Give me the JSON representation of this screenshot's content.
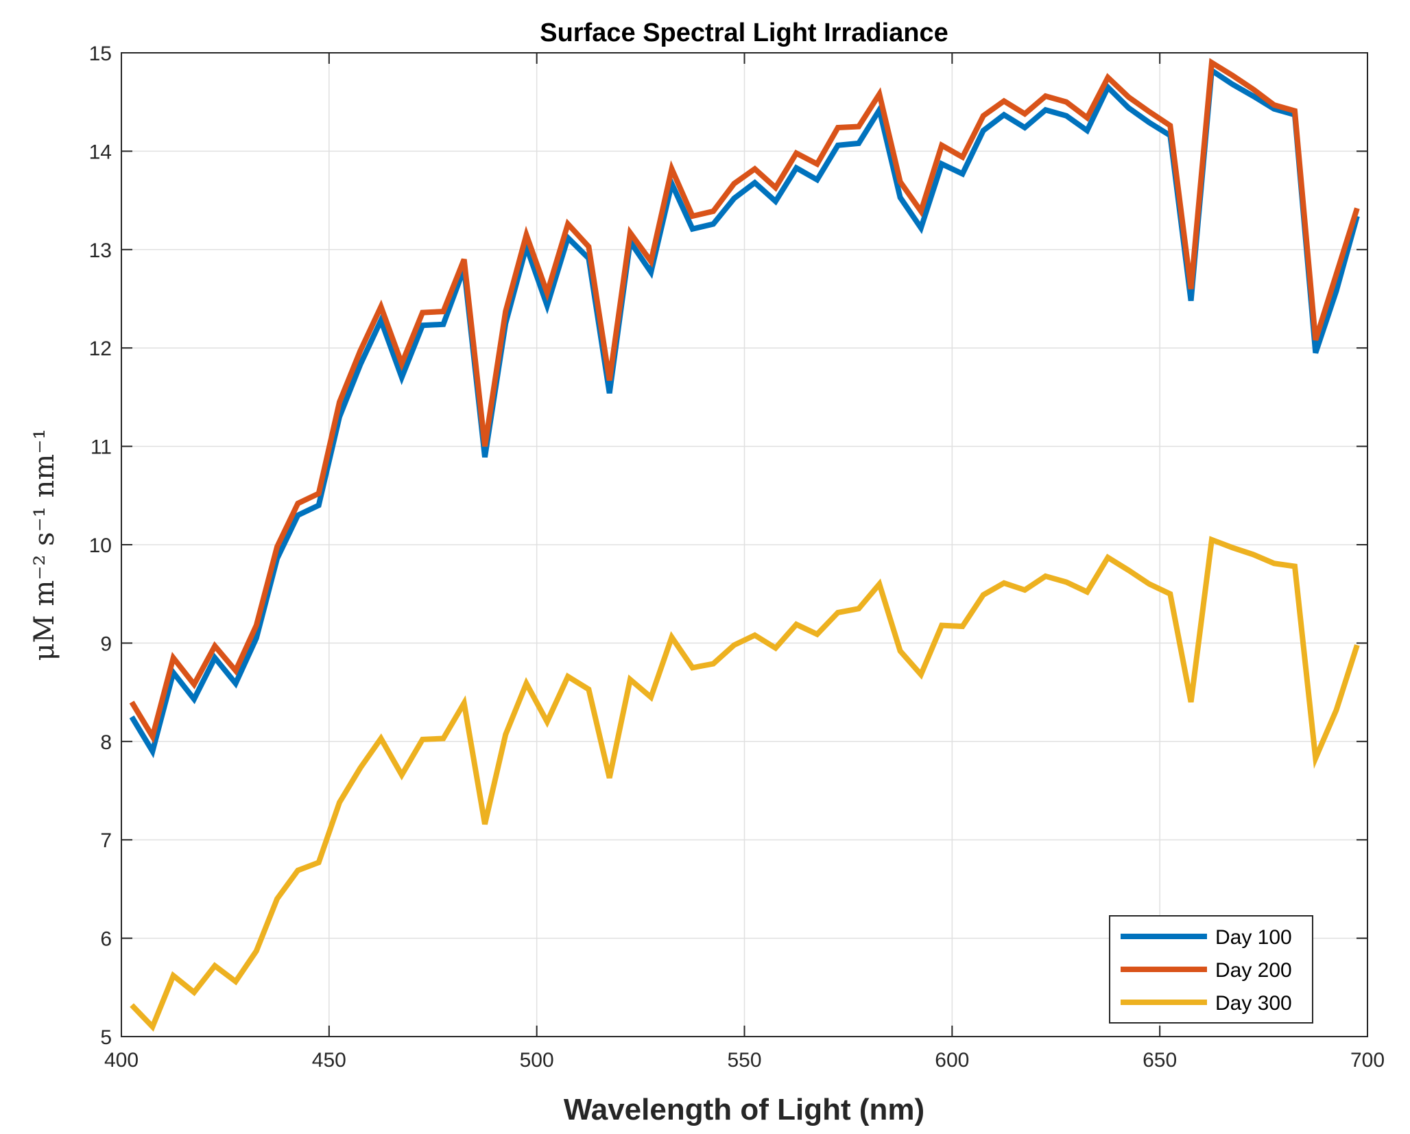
{
  "chart_data": {
    "type": "line",
    "title": "Surface Spectral Light Irradiance",
    "xlabel": "Wavelength of Light (nm)",
    "ylabel": "μM m⁻² s⁻¹ nm⁻¹",
    "xlim": [
      400,
      700
    ],
    "ylim": [
      5,
      15
    ],
    "xticks": [
      400,
      450,
      500,
      550,
      600,
      650,
      700
    ],
    "yticks": [
      5,
      6,
      7,
      8,
      9,
      10,
      11,
      12,
      13,
      14,
      15
    ],
    "grid": true,
    "legend_position": "bottom-right",
    "x": [
      402.5,
      407.5,
      412.5,
      417.5,
      422.5,
      427.5,
      432.5,
      437.5,
      442.5,
      447.5,
      452.5,
      457.5,
      462.5,
      467.5,
      472.5,
      477.5,
      482.5,
      487.5,
      492.5,
      497.5,
      502.5,
      507.5,
      512.5,
      517.5,
      522.5,
      527.5,
      532.5,
      537.5,
      542.5,
      547.5,
      552.5,
      557.5,
      562.5,
      567.5,
      572.5,
      577.5,
      582.5,
      587.5,
      592.5,
      597.5,
      602.5,
      607.5,
      612.5,
      617.5,
      622.5,
      627.5,
      632.5,
      637.5,
      642.5,
      647.5,
      652.5,
      657.5,
      662.5,
      667.5,
      672.5,
      677.5,
      682.5,
      687.5,
      692.5,
      697.5
    ],
    "series": [
      {
        "name": "Day 100",
        "color": "#0072BD",
        "values": [
          8.25,
          7.9,
          8.7,
          8.43,
          8.85,
          8.59,
          9.05,
          9.86,
          10.3,
          10.4,
          11.3,
          11.83,
          12.28,
          11.7,
          12.23,
          12.24,
          12.81,
          10.89,
          12.25,
          13.03,
          12.43,
          13.12,
          12.91,
          11.54,
          13.08,
          12.77,
          13.67,
          13.21,
          13.26,
          13.52,
          13.68,
          13.49,
          13.83,
          13.71,
          14.06,
          14.08,
          14.42,
          13.53,
          13.22,
          13.87,
          13.77,
          14.21,
          14.37,
          14.24,
          14.42,
          14.36,
          14.21,
          14.65,
          14.44,
          14.29,
          14.16,
          12.48,
          14.82,
          14.68,
          14.56,
          14.43,
          14.37,
          11.95,
          12.58,
          13.34
        ]
      },
      {
        "name": "Day 200",
        "color": "#D95319",
        "values": [
          8.4,
          8.05,
          8.85,
          8.58,
          8.97,
          8.72,
          9.18,
          9.98,
          10.42,
          10.52,
          11.45,
          11.97,
          12.42,
          11.84,
          12.36,
          12.37,
          12.9,
          11.0,
          12.37,
          13.15,
          12.56,
          13.26,
          13.03,
          11.67,
          13.17,
          12.88,
          13.82,
          13.34,
          13.39,
          13.67,
          13.82,
          13.63,
          13.98,
          13.87,
          14.24,
          14.25,
          14.58,
          13.69,
          13.39,
          14.06,
          13.94,
          14.36,
          14.51,
          14.38,
          14.56,
          14.5,
          14.34,
          14.75,
          14.55,
          14.4,
          14.26,
          12.6,
          14.9,
          14.77,
          14.63,
          14.47,
          14.41,
          12.08,
          12.75,
          13.42
        ]
      },
      {
        "name": "Day 300",
        "color": "#EDB120",
        "values": [
          5.32,
          5.1,
          5.62,
          5.45,
          5.72,
          5.56,
          5.87,
          6.4,
          6.69,
          6.77,
          7.38,
          7.73,
          8.03,
          7.66,
          8.02,
          8.03,
          8.39,
          7.16,
          8.07,
          8.59,
          8.2,
          8.66,
          8.53,
          7.63,
          8.63,
          8.45,
          9.06,
          8.75,
          8.79,
          8.98,
          9.08,
          8.95,
          9.19,
          9.09,
          9.31,
          9.35,
          9.6,
          8.92,
          8.68,
          9.18,
          9.17,
          9.49,
          9.61,
          9.54,
          9.68,
          9.62,
          9.52,
          9.87,
          9.74,
          9.6,
          9.5,
          8.4,
          10.05,
          9.97,
          9.9,
          9.81,
          9.78,
          7.83,
          8.32,
          8.98
        ]
      }
    ]
  }
}
